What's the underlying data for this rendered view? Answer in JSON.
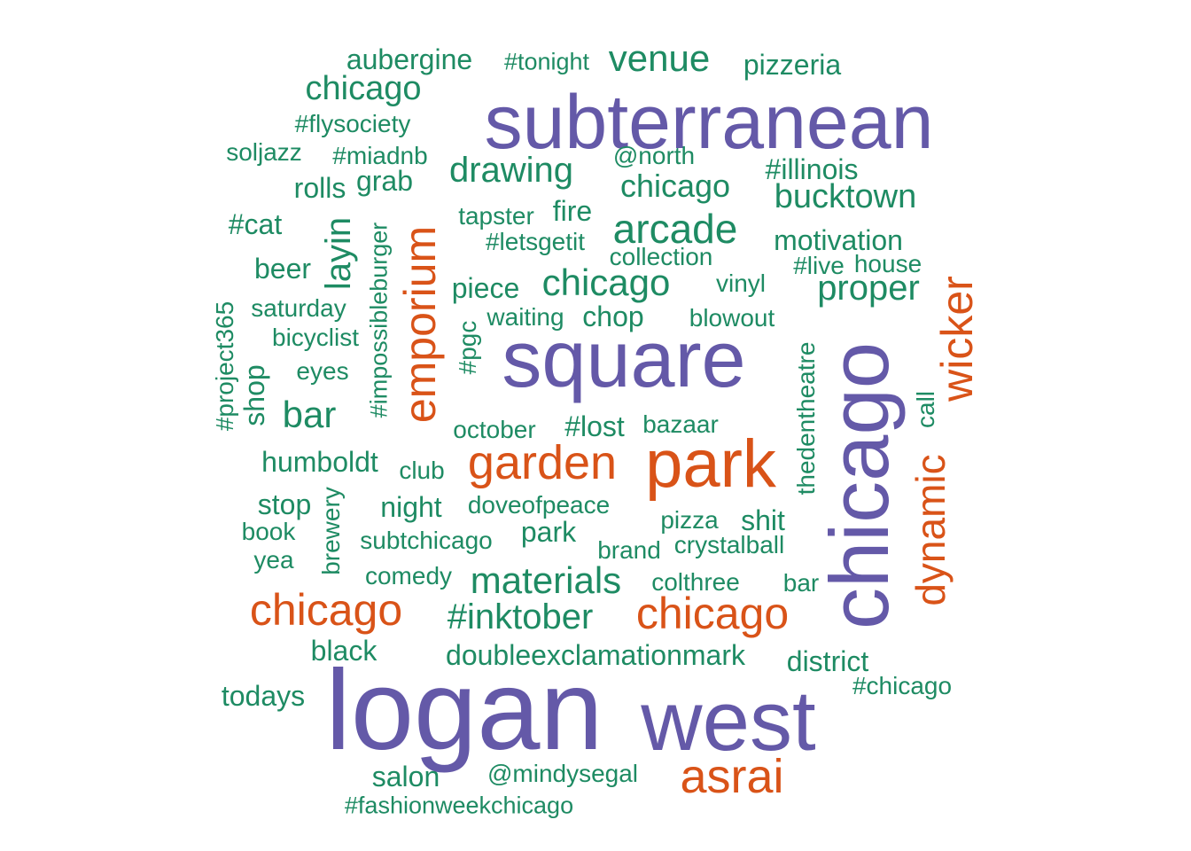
{
  "colors": {
    "purple": "#6459a8",
    "orange": "#d95318",
    "green": "#1e8b63"
  },
  "words": [
    {
      "text": "logan",
      "color": "purple"
    },
    {
      "text": "west",
      "color": "purple"
    },
    {
      "text": "subterranean",
      "color": "purple"
    },
    {
      "text": "square",
      "color": "purple"
    },
    {
      "text": "chicago",
      "color": "purple"
    },
    {
      "text": "park",
      "color": "orange"
    },
    {
      "text": "garden",
      "color": "orange"
    },
    {
      "text": "emporium",
      "color": "orange"
    },
    {
      "text": "wicker",
      "color": "orange"
    },
    {
      "text": "dynamic",
      "color": "orange"
    },
    {
      "text": "chicago",
      "color": "orange"
    },
    {
      "text": "chicago",
      "color": "orange"
    },
    {
      "text": "asrai",
      "color": "orange"
    },
    {
      "text": "aubergine",
      "color": "green"
    },
    {
      "text": "#tonight",
      "color": "green"
    },
    {
      "text": "venue",
      "color": "green"
    },
    {
      "text": "pizzeria",
      "color": "green"
    },
    {
      "text": "chicago",
      "color": "green"
    },
    {
      "text": "#flysociety",
      "color": "green"
    },
    {
      "text": "soljazz",
      "color": "green"
    },
    {
      "text": "#miadnb",
      "color": "green"
    },
    {
      "text": "drawing",
      "color": "green"
    },
    {
      "text": "@north",
      "color": "green"
    },
    {
      "text": "#illinois",
      "color": "green"
    },
    {
      "text": "rolls",
      "color": "green"
    },
    {
      "text": "grab",
      "color": "green"
    },
    {
      "text": "chicago",
      "color": "green"
    },
    {
      "text": "bucktown",
      "color": "green"
    },
    {
      "text": "#cat",
      "color": "green"
    },
    {
      "text": "layin",
      "color": "green"
    },
    {
      "text": "#impossibleburger",
      "color": "green"
    },
    {
      "text": "tapster",
      "color": "green"
    },
    {
      "text": "fire",
      "color": "green"
    },
    {
      "text": "arcade",
      "color": "green"
    },
    {
      "text": "motivation",
      "color": "green"
    },
    {
      "text": "#letsgetit",
      "color": "green"
    },
    {
      "text": "collection",
      "color": "green"
    },
    {
      "text": "#live",
      "color": "green"
    },
    {
      "text": "house",
      "color": "green"
    },
    {
      "text": "beer",
      "color": "green"
    },
    {
      "text": "piece",
      "color": "green"
    },
    {
      "text": "chicago",
      "color": "green"
    },
    {
      "text": "vinyl",
      "color": "green"
    },
    {
      "text": "proper",
      "color": "green"
    },
    {
      "text": "#project365",
      "color": "green"
    },
    {
      "text": "saturday",
      "color": "green"
    },
    {
      "text": "waiting",
      "color": "green"
    },
    {
      "text": "chop",
      "color": "green"
    },
    {
      "text": "blowout",
      "color": "green"
    },
    {
      "text": "#pgc",
      "color": "green"
    },
    {
      "text": "bicyclist",
      "color": "green"
    },
    {
      "text": "shop",
      "color": "green"
    },
    {
      "text": "eyes",
      "color": "green"
    },
    {
      "text": "thedentheatre",
      "color": "green"
    },
    {
      "text": "bar",
      "color": "green"
    },
    {
      "text": "october",
      "color": "green"
    },
    {
      "text": "#lost",
      "color": "green"
    },
    {
      "text": "bazaar",
      "color": "green"
    },
    {
      "text": "call",
      "color": "green"
    },
    {
      "text": "humboldt",
      "color": "green"
    },
    {
      "text": "club",
      "color": "green"
    },
    {
      "text": "stop",
      "color": "green"
    },
    {
      "text": "brewery",
      "color": "green"
    },
    {
      "text": "night",
      "color": "green"
    },
    {
      "text": "doveofpeace",
      "color": "green"
    },
    {
      "text": "pizza",
      "color": "green"
    },
    {
      "text": "shit",
      "color": "green"
    },
    {
      "text": "book",
      "color": "green"
    },
    {
      "text": "subtchicago",
      "color": "green"
    },
    {
      "text": "park",
      "color": "green"
    },
    {
      "text": "brand",
      "color": "green"
    },
    {
      "text": "crystalball",
      "color": "green"
    },
    {
      "text": "yea",
      "color": "green"
    },
    {
      "text": "comedy",
      "color": "green"
    },
    {
      "text": "materials",
      "color": "green"
    },
    {
      "text": "colthree",
      "color": "green"
    },
    {
      "text": "bar",
      "color": "green"
    },
    {
      "text": "#inktober",
      "color": "green"
    },
    {
      "text": "black",
      "color": "green"
    },
    {
      "text": "doubleexclamationmark",
      "color": "green"
    },
    {
      "text": "district",
      "color": "green"
    },
    {
      "text": "#chicago",
      "color": "green"
    },
    {
      "text": "todays",
      "color": "green"
    },
    {
      "text": "salon",
      "color": "green"
    },
    {
      "text": "@mindysegal",
      "color": "green"
    },
    {
      "text": "#fashionweekchicago",
      "color": "green"
    }
  ]
}
